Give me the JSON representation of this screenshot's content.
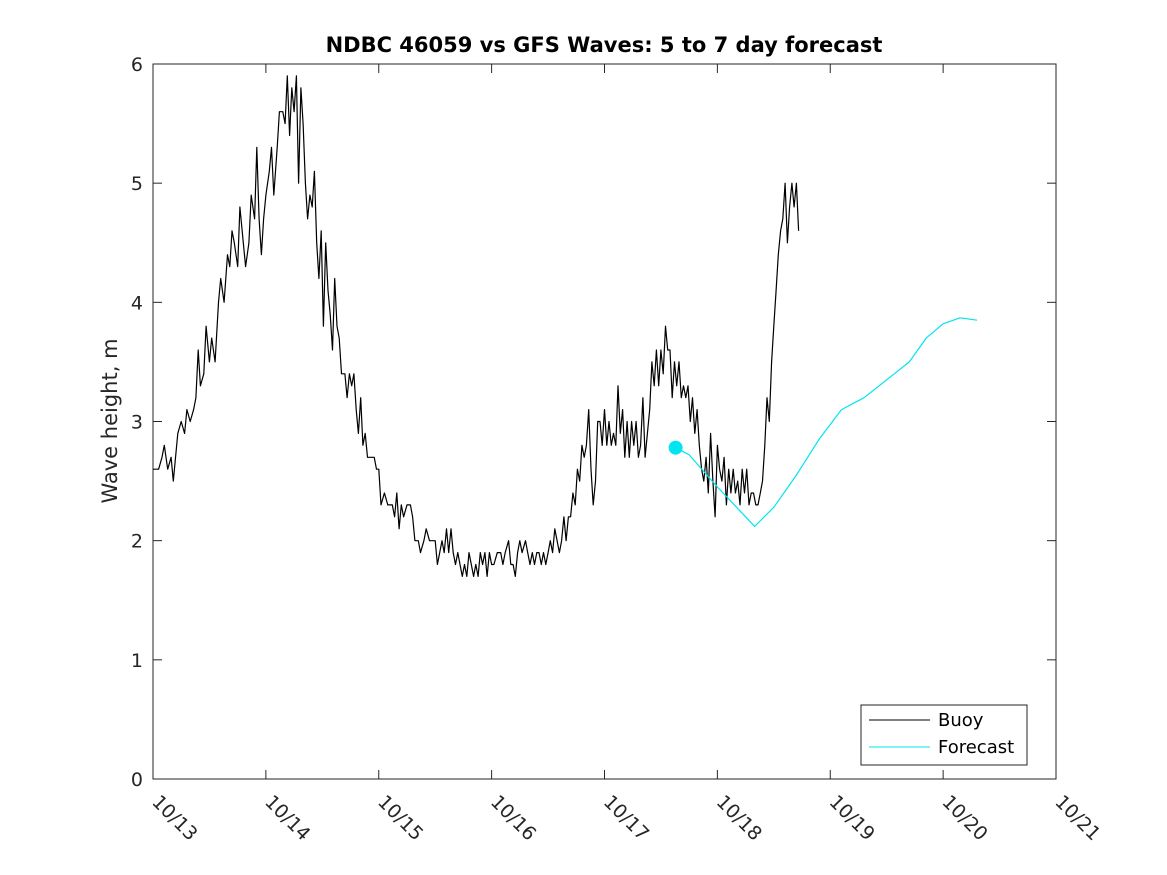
{
  "chart_data": {
    "type": "line",
    "title": "NDBC 46059 vs GFS Waves: 5 to 7 day forecast",
    "xlabel": "",
    "ylabel": "Wave height, m",
    "x_ticks": [
      "10/13",
      "10/14",
      "10/15",
      "10/16",
      "10/17",
      "10/18",
      "10/19",
      "10/20",
      "10/21"
    ],
    "xlim": [
      0,
      8
    ],
    "x_units": "days after 10/13",
    "ylim": [
      0,
      6
    ],
    "y_ticks": [
      0,
      1,
      2,
      3,
      4,
      5,
      6
    ],
    "grid": false,
    "legend_position": "bottom-right",
    "series": [
      {
        "name": "Buoy",
        "color": "#000000",
        "points": [
          [
            0.0,
            2.6
          ],
          [
            0.05,
            2.6
          ],
          [
            0.08,
            2.7
          ],
          [
            0.1,
            2.8
          ],
          [
            0.13,
            2.6
          ],
          [
            0.16,
            2.7
          ],
          [
            0.18,
            2.5
          ],
          [
            0.22,
            2.9
          ],
          [
            0.25,
            3.0
          ],
          [
            0.28,
            2.9
          ],
          [
            0.3,
            3.1
          ],
          [
            0.33,
            3.0
          ],
          [
            0.36,
            3.1
          ],
          [
            0.38,
            3.2
          ],
          [
            0.4,
            3.6
          ],
          [
            0.42,
            3.3
          ],
          [
            0.45,
            3.4
          ],
          [
            0.47,
            3.8
          ],
          [
            0.5,
            3.5
          ],
          [
            0.52,
            3.7
          ],
          [
            0.55,
            3.5
          ],
          [
            0.58,
            4.0
          ],
          [
            0.6,
            4.2
          ],
          [
            0.63,
            4.0
          ],
          [
            0.66,
            4.4
          ],
          [
            0.68,
            4.3
          ],
          [
            0.7,
            4.6
          ],
          [
            0.72,
            4.5
          ],
          [
            0.75,
            4.3
          ],
          [
            0.77,
            4.8
          ],
          [
            0.8,
            4.5
          ],
          [
            0.82,
            4.3
          ],
          [
            0.85,
            4.5
          ],
          [
            0.87,
            4.9
          ],
          [
            0.9,
            4.7
          ],
          [
            0.92,
            5.3
          ],
          [
            0.94,
            4.7
          ],
          [
            0.96,
            4.4
          ],
          [
            0.98,
            4.7
          ],
          [
            1.0,
            4.9
          ],
          [
            1.03,
            5.1
          ],
          [
            1.05,
            5.3
          ],
          [
            1.07,
            4.9
          ],
          [
            1.1,
            5.3
          ],
          [
            1.12,
            5.6
          ],
          [
            1.15,
            5.6
          ],
          [
            1.17,
            5.5
          ],
          [
            1.19,
            5.9
          ],
          [
            1.21,
            5.4
          ],
          [
            1.23,
            5.8
          ],
          [
            1.25,
            5.6
          ],
          [
            1.27,
            5.9
          ],
          [
            1.29,
            5.0
          ],
          [
            1.31,
            5.8
          ],
          [
            1.33,
            5.5
          ],
          [
            1.35,
            5.0
          ],
          [
            1.37,
            4.7
          ],
          [
            1.39,
            4.9
          ],
          [
            1.41,
            4.8
          ],
          [
            1.43,
            5.1
          ],
          [
            1.45,
            4.5
          ],
          [
            1.47,
            4.2
          ],
          [
            1.49,
            4.6
          ],
          [
            1.51,
            3.8
          ],
          [
            1.53,
            4.5
          ],
          [
            1.55,
            4.1
          ],
          [
            1.57,
            3.9
          ],
          [
            1.59,
            3.6
          ],
          [
            1.61,
            4.2
          ],
          [
            1.63,
            3.8
          ],
          [
            1.65,
            3.7
          ],
          [
            1.67,
            3.4
          ],
          [
            1.7,
            3.4
          ],
          [
            1.72,
            3.2
          ],
          [
            1.74,
            3.4
          ],
          [
            1.76,
            3.3
          ],
          [
            1.78,
            3.4
          ],
          [
            1.8,
            3.1
          ],
          [
            1.82,
            2.9
          ],
          [
            1.84,
            3.2
          ],
          [
            1.86,
            2.8
          ],
          [
            1.88,
            2.9
          ],
          [
            1.9,
            2.7
          ],
          [
            1.93,
            2.7
          ],
          [
            1.96,
            2.7
          ],
          [
            1.98,
            2.6
          ],
          [
            2.0,
            2.6
          ],
          [
            2.02,
            2.3
          ],
          [
            2.05,
            2.4
          ],
          [
            2.08,
            2.3
          ],
          [
            2.1,
            2.3
          ],
          [
            2.12,
            2.3
          ],
          [
            2.14,
            2.2
          ],
          [
            2.16,
            2.4
          ],
          [
            2.18,
            2.1
          ],
          [
            2.2,
            2.3
          ],
          [
            2.22,
            2.2
          ],
          [
            2.25,
            2.3
          ],
          [
            2.28,
            2.3
          ],
          [
            2.3,
            2.2
          ],
          [
            2.32,
            2.0
          ],
          [
            2.35,
            2.0
          ],
          [
            2.37,
            1.9
          ],
          [
            2.4,
            2.0
          ],
          [
            2.42,
            2.1
          ],
          [
            2.45,
            2.0
          ],
          [
            2.48,
            2.0
          ],
          [
            2.5,
            2.0
          ],
          [
            2.52,
            1.8
          ],
          [
            2.54,
            1.9
          ],
          [
            2.56,
            2.0
          ],
          [
            2.58,
            1.9
          ],
          [
            2.6,
            2.1
          ],
          [
            2.62,
            1.9
          ],
          [
            2.64,
            2.1
          ],
          [
            2.66,
            1.9
          ],
          [
            2.68,
            1.8
          ],
          [
            2.7,
            1.9
          ],
          [
            2.72,
            1.8
          ],
          [
            2.74,
            1.7
          ],
          [
            2.76,
            1.8
          ],
          [
            2.78,
            1.7
          ],
          [
            2.8,
            1.9
          ],
          [
            2.82,
            1.8
          ],
          [
            2.84,
            1.7
          ],
          [
            2.86,
            1.8
          ],
          [
            2.88,
            1.7
          ],
          [
            2.9,
            1.9
          ],
          [
            2.92,
            1.8
          ],
          [
            2.94,
            1.9
          ],
          [
            2.96,
            1.7
          ],
          [
            2.98,
            1.9
          ],
          [
            3.0,
            1.8
          ],
          [
            3.02,
            1.8
          ],
          [
            3.05,
            1.9
          ],
          [
            3.08,
            1.9
          ],
          [
            3.1,
            1.8
          ],
          [
            3.12,
            1.9
          ],
          [
            3.15,
            2.0
          ],
          [
            3.17,
            1.8
          ],
          [
            3.19,
            1.8
          ],
          [
            3.21,
            1.7
          ],
          [
            3.23,
            1.9
          ],
          [
            3.25,
            2.0
          ],
          [
            3.27,
            1.9
          ],
          [
            3.3,
            2.0
          ],
          [
            3.32,
            1.9
          ],
          [
            3.34,
            1.8
          ],
          [
            3.36,
            1.9
          ],
          [
            3.38,
            1.8
          ],
          [
            3.4,
            1.9
          ],
          [
            3.42,
            1.9
          ],
          [
            3.44,
            1.8
          ],
          [
            3.46,
            1.9
          ],
          [
            3.48,
            1.8
          ],
          [
            3.5,
            1.9
          ],
          [
            3.52,
            2.0
          ],
          [
            3.54,
            1.9
          ],
          [
            3.56,
            2.1
          ],
          [
            3.58,
            2.0
          ],
          [
            3.6,
            1.9
          ],
          [
            3.62,
            2.0
          ],
          [
            3.64,
            2.2
          ],
          [
            3.66,
            2.0
          ],
          [
            3.68,
            2.2
          ],
          [
            3.7,
            2.2
          ],
          [
            3.72,
            2.4
          ],
          [
            3.74,
            2.3
          ],
          [
            3.76,
            2.6
          ],
          [
            3.78,
            2.5
          ],
          [
            3.8,
            2.8
          ],
          [
            3.82,
            2.7
          ],
          [
            3.84,
            2.8
          ],
          [
            3.86,
            3.1
          ],
          [
            3.88,
            2.6
          ],
          [
            3.9,
            2.3
          ],
          [
            3.92,
            2.5
          ],
          [
            3.94,
            3.0
          ],
          [
            3.96,
            3.0
          ],
          [
            3.98,
            2.8
          ],
          [
            4.0,
            3.1
          ],
          [
            4.02,
            2.8
          ],
          [
            4.04,
            3.0
          ],
          [
            4.06,
            2.8
          ],
          [
            4.08,
            2.9
          ],
          [
            4.1,
            2.8
          ],
          [
            4.12,
            3.3
          ],
          [
            4.14,
            2.9
          ],
          [
            4.16,
            3.1
          ],
          [
            4.18,
            2.7
          ],
          [
            4.2,
            3.0
          ],
          [
            4.22,
            2.7
          ],
          [
            4.24,
            3.0
          ],
          [
            4.26,
            2.8
          ],
          [
            4.28,
            3.0
          ],
          [
            4.3,
            2.7
          ],
          [
            4.32,
            2.8
          ],
          [
            4.34,
            3.2
          ],
          [
            4.36,
            2.7
          ],
          [
            4.38,
            2.9
          ],
          [
            4.4,
            3.1
          ],
          [
            4.42,
            3.5
          ],
          [
            4.44,
            3.3
          ],
          [
            4.46,
            3.6
          ],
          [
            4.48,
            3.3
          ],
          [
            4.5,
            3.6
          ],
          [
            4.52,
            3.4
          ],
          [
            4.54,
            3.8
          ],
          [
            4.56,
            3.6
          ],
          [
            4.58,
            3.6
          ],
          [
            4.6,
            3.2
          ],
          [
            4.62,
            3.5
          ],
          [
            4.64,
            3.3
          ],
          [
            4.66,
            3.5
          ],
          [
            4.68,
            3.2
          ],
          [
            4.7,
            3.3
          ],
          [
            4.72,
            3.2
          ],
          [
            4.74,
            3.3
          ],
          [
            4.76,
            3.0
          ],
          [
            4.78,
            3.2
          ],
          [
            4.8,
            2.9
          ],
          [
            4.82,
            3.1
          ],
          [
            4.84,
            2.8
          ],
          [
            4.86,
            2.6
          ],
          [
            4.88,
            2.5
          ],
          [
            4.9,
            2.7
          ],
          [
            4.92,
            2.4
          ],
          [
            4.94,
            2.9
          ],
          [
            4.96,
            2.5
          ],
          [
            4.98,
            2.2
          ],
          [
            5.0,
            2.8
          ],
          [
            5.02,
            2.6
          ],
          [
            5.04,
            2.5
          ],
          [
            5.06,
            2.7
          ],
          [
            5.08,
            2.3
          ],
          [
            5.1,
            2.6
          ],
          [
            5.12,
            2.4
          ],
          [
            5.14,
            2.6
          ],
          [
            5.16,
            2.4
          ],
          [
            5.18,
            2.5
          ],
          [
            5.2,
            2.3
          ],
          [
            5.22,
            2.6
          ],
          [
            5.24,
            2.4
          ],
          [
            5.26,
            2.6
          ],
          [
            5.28,
            2.3
          ],
          [
            5.3,
            2.4
          ],
          [
            5.32,
            2.4
          ],
          [
            5.34,
            2.3
          ],
          [
            5.36,
            2.3
          ],
          [
            5.38,
            2.4
          ],
          [
            5.4,
            2.5
          ],
          [
            5.42,
            2.8
          ],
          [
            5.44,
            3.2
          ],
          [
            5.46,
            3.0
          ],
          [
            5.48,
            3.5
          ],
          [
            5.5,
            3.8
          ],
          [
            5.52,
            4.1
          ],
          [
            5.54,
            4.4
          ],
          [
            5.56,
            4.6
          ],
          [
            5.58,
            4.7
          ],
          [
            5.6,
            5.0
          ],
          [
            5.62,
            4.5
          ],
          [
            5.64,
            4.8
          ],
          [
            5.66,
            5.0
          ],
          [
            5.68,
            4.8
          ],
          [
            5.7,
            5.0
          ],
          [
            5.72,
            4.6
          ]
        ]
      },
      {
        "name": "Forecast",
        "color": "#00e5ee",
        "points": [
          [
            4.63,
            2.78
          ],
          [
            4.75,
            2.72
          ],
          [
            5.0,
            2.45
          ],
          [
            5.25,
            2.2
          ],
          [
            5.33,
            2.12
          ],
          [
            5.5,
            2.28
          ],
          [
            5.7,
            2.55
          ],
          [
            5.9,
            2.85
          ],
          [
            6.1,
            3.1
          ],
          [
            6.3,
            3.2
          ],
          [
            6.5,
            3.35
          ],
          [
            6.7,
            3.5
          ],
          [
            6.85,
            3.7
          ],
          [
            7.0,
            3.82
          ],
          [
            7.15,
            3.87
          ],
          [
            7.3,
            3.85
          ]
        ]
      }
    ],
    "marker": {
      "series": "Forecast",
      "x": 4.63,
      "y": 2.78,
      "color": "#00e5ee"
    }
  }
}
